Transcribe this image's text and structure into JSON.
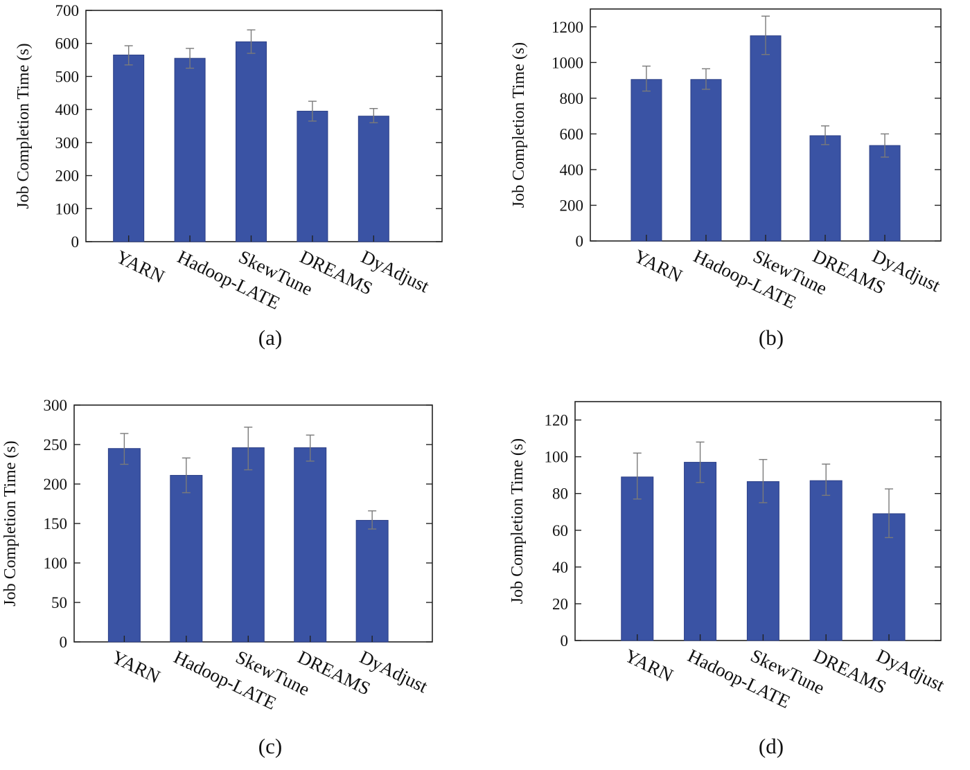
{
  "figure": {
    "bar_color": "#3a53a4",
    "error_color": "#7a7a7a",
    "frame_color": "#222222"
  },
  "chart_data": [
    {
      "type": "bar",
      "panel_label": "(a)",
      "title": "",
      "xlabel": "",
      "ylabel": "Job Completion Time (s)",
      "categories": [
        "YARN",
        "Hadoop-LATE",
        "SkewTune",
        "DREAMS",
        "DyAdjust"
      ],
      "values": [
        565,
        555,
        605,
        395,
        380
      ],
      "error_low": [
        535,
        525,
        570,
        365,
        360
      ],
      "error_high": [
        593,
        585,
        641,
        425,
        403
      ],
      "ylim": [
        0,
        700
      ],
      "yticks": [
        0,
        100,
        200,
        300,
        400,
        500,
        600,
        700
      ],
      "grid": false,
      "legend": "none"
    },
    {
      "type": "bar",
      "panel_label": "(b)",
      "title": "",
      "xlabel": "",
      "ylabel": "Job Completion Time (s)",
      "categories": [
        "YARN",
        "Hadoop-LATE",
        "SkewTune",
        "DREAMS",
        "DyAdjust"
      ],
      "values": [
        905,
        905,
        1150,
        590,
        535
      ],
      "error_low": [
        840,
        850,
        1045,
        540,
        470
      ],
      "error_high": [
        980,
        965,
        1260,
        645,
        600
      ],
      "ylim": [
        0,
        1300
      ],
      "yticks": [
        0,
        200,
        400,
        600,
        800,
        1000,
        1200
      ],
      "grid": false,
      "legend": "none"
    },
    {
      "type": "bar",
      "panel_label": "(c)",
      "title": "",
      "xlabel": "",
      "ylabel": "Job Completion Time (s)",
      "categories": [
        "YARN",
        "Hadoop-LATE",
        "SkewTune",
        "DREAMS",
        "DyAdjust"
      ],
      "values": [
        245,
        211,
        246,
        246,
        154
      ],
      "error_low": [
        225,
        189,
        218,
        229,
        143
      ],
      "error_high": [
        264,
        233,
        272,
        262,
        166
      ],
      "ylim": [
        0,
        300
      ],
      "yticks": [
        0,
        50,
        100,
        150,
        200,
        250,
        300
      ],
      "grid": false,
      "legend": "none"
    },
    {
      "type": "bar",
      "panel_label": "(d)",
      "title": "",
      "xlabel": "",
      "ylabel": "Job Completion Time (s)",
      "categories": [
        "YARN",
        "Hadoop-LATE",
        "SkewTune",
        "DREAMS",
        "DyAdjust"
      ],
      "values": [
        89,
        97,
        86.5,
        87,
        69
      ],
      "error_low": [
        77,
        86,
        75,
        79,
        56
      ],
      "error_high": [
        102,
        108,
        98.5,
        96,
        82.5
      ],
      "ylim": [
        0,
        130
      ],
      "yticks": [
        0,
        20,
        40,
        60,
        80,
        100,
        120
      ],
      "grid": false,
      "legend": "none"
    }
  ]
}
